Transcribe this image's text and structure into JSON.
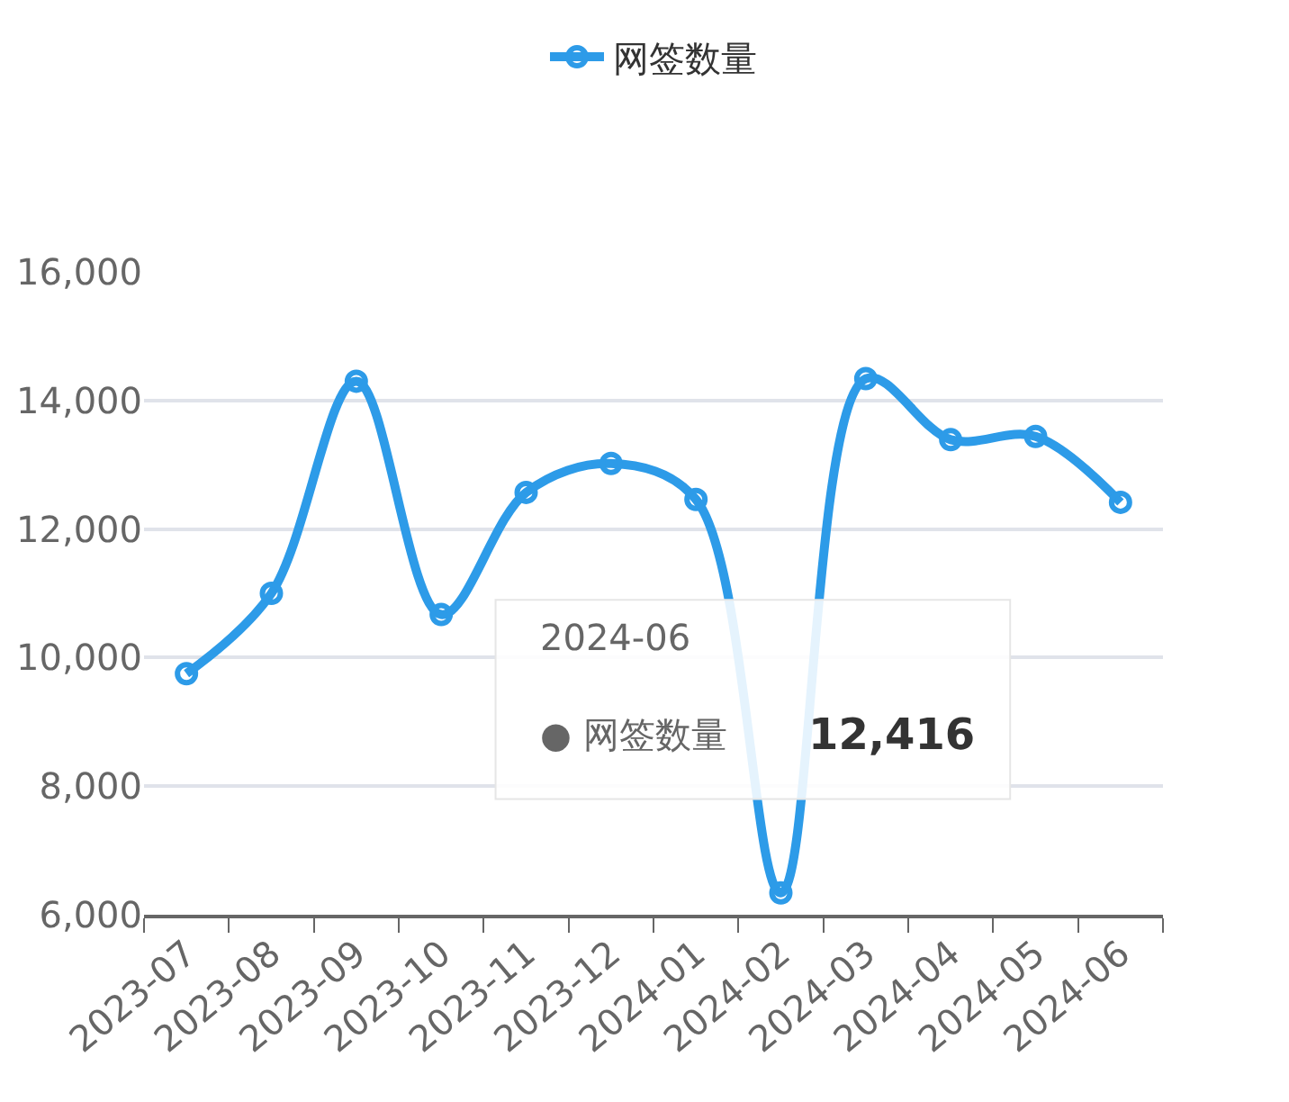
{
  "chart_data": {
    "type": "line",
    "categories": [
      "2023-07",
      "2023-08",
      "2023-09",
      "2023-10",
      "2023-11",
      "2023-12",
      "2024-01",
      "2024-02",
      "2024-03",
      "2024-04",
      "2024-05",
      "2024-06"
    ],
    "series": [
      {
        "name": "网签数量",
        "color": "#2d9be8",
        "values": [
          9750,
          11000,
          14300,
          10670,
          12570,
          13020,
          12460,
          6340,
          14340,
          13390,
          13440,
          12416
        ]
      }
    ],
    "annotations": [
      "2024-06",
      "● 网签数量",
      "12,416"
    ],
    "ylim": [
      6000,
      16000
    ],
    "yticks": [
      {
        "value": 6000,
        "label": "6,000"
      },
      {
        "value": 8000,
        "label": "8,000"
      },
      {
        "value": 10000,
        "label": "10,000"
      },
      {
        "value": 12000,
        "label": "12,000"
      },
      {
        "value": 14000,
        "label": "14,000"
      },
      {
        "value": 16000,
        "label": "16,000"
      }
    ],
    "grid": "y",
    "legend": "top",
    "marker": "circle",
    "line_style": "solid"
  }
}
